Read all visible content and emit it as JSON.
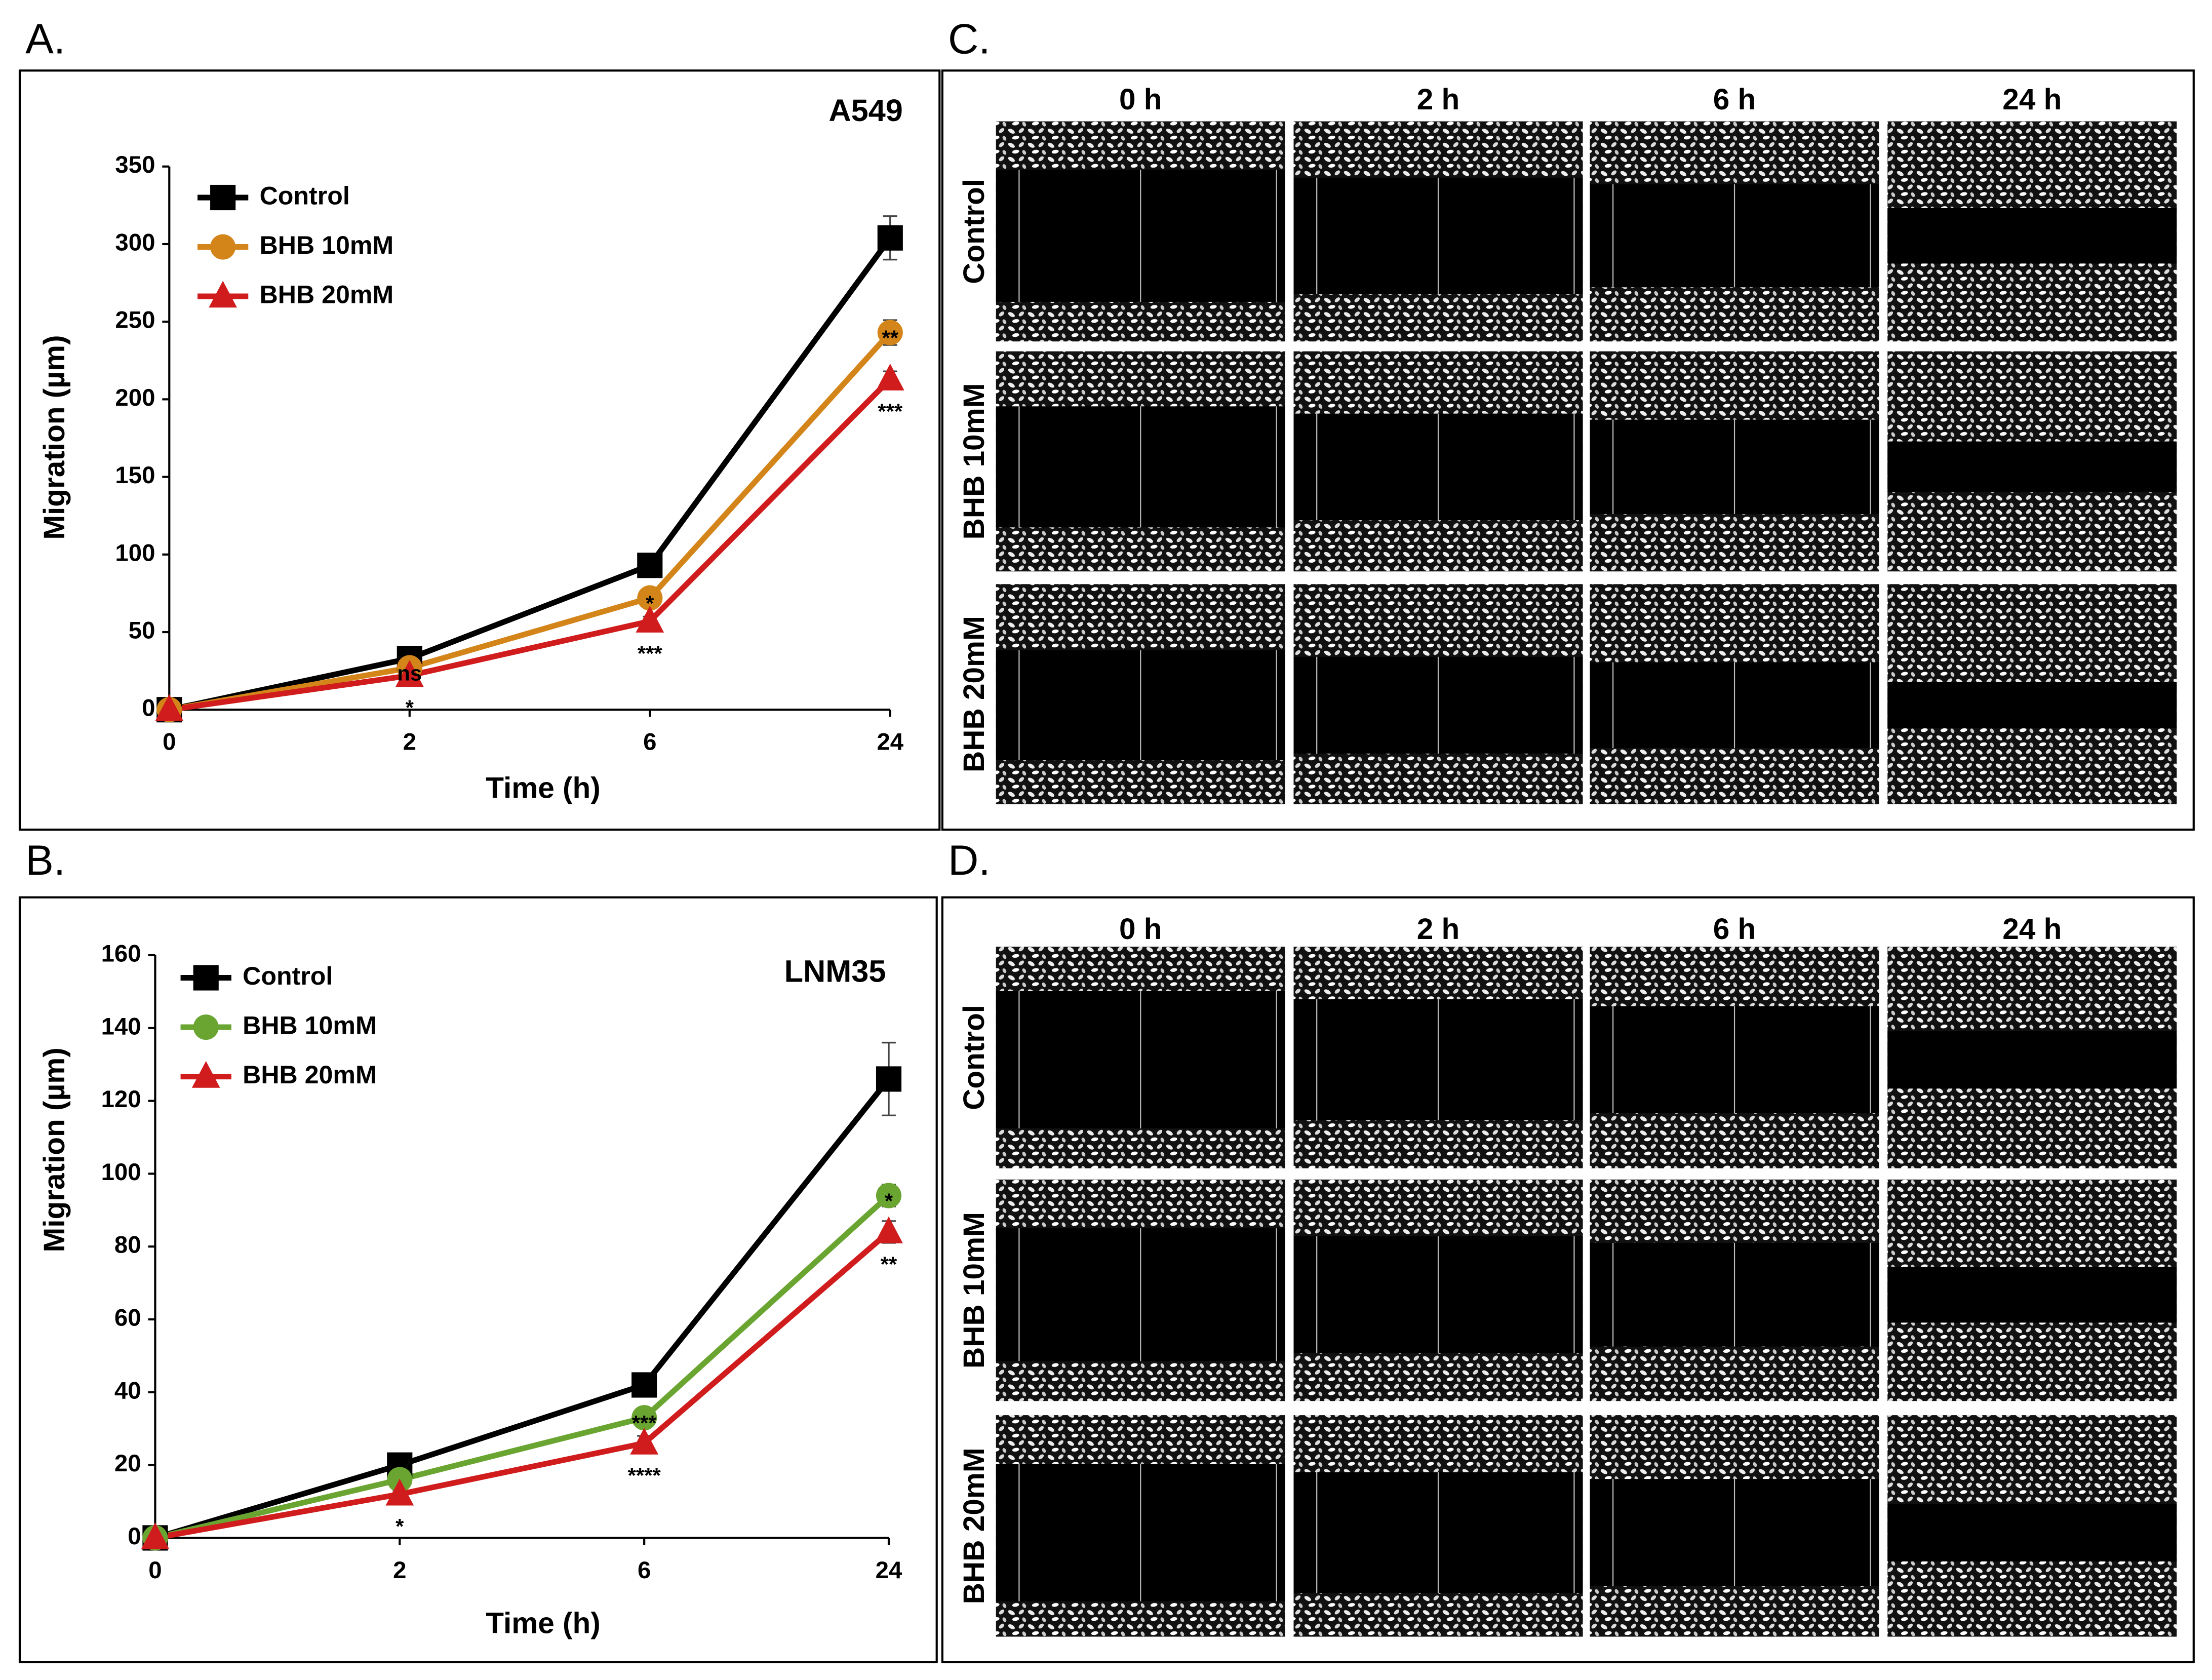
{
  "panels": [
    "A.",
    "B.",
    "C.",
    "D."
  ],
  "chart_data": [
    {
      "type": "line",
      "title": "A549",
      "xlabel": "Time (h)",
      "ylabel": "Migration (µm)",
      "categories": [
        "0",
        "2",
        "6",
        "24"
      ],
      "ylim": [
        0,
        350
      ],
      "yticks": [
        0,
        50,
        100,
        150,
        200,
        250,
        300,
        350
      ],
      "series": [
        {
          "name": "Control",
          "color": "#000000",
          "marker": "square",
          "values": [
            0,
            33,
            93,
            304
          ],
          "errors": [
            0,
            2,
            4,
            14
          ],
          "significance": [
            null,
            null,
            null,
            null
          ]
        },
        {
          "name": "BHB 10mM",
          "color": "#d4851a",
          "marker": "circle",
          "values": [
            0,
            27,
            72,
            243
          ],
          "errors": [
            0,
            2,
            3,
            8
          ],
          "significance": [
            null,
            "ns",
            "*",
            "**"
          ]
        },
        {
          "name": "BHB 20mM",
          "color": "#d01c1c",
          "marker": "triangle",
          "values": [
            0,
            22,
            57,
            213
          ],
          "errors": [
            0,
            2,
            3,
            5
          ],
          "significance": [
            null,
            "*",
            "***",
            "***"
          ]
        }
      ]
    },
    {
      "type": "line",
      "title": "LNM35",
      "xlabel": "Time (h)",
      "ylabel": "Migration (µm)",
      "categories": [
        "0",
        "2",
        "6",
        "24"
      ],
      "ylim": [
        0,
        160
      ],
      "yticks": [
        0,
        20,
        40,
        60,
        80,
        100,
        120,
        140,
        160
      ],
      "series": [
        {
          "name": "Control",
          "color": "#000000",
          "marker": "square",
          "values": [
            0,
            20,
            42,
            126
          ],
          "errors": [
            0,
            1,
            2,
            10
          ],
          "significance": [
            null,
            null,
            null,
            null
          ]
        },
        {
          "name": "BHB 10mM",
          "color": "#6aa532",
          "marker": "circle",
          "values": [
            0,
            16,
            33,
            94
          ],
          "errors": [
            0,
            1,
            2,
            3
          ],
          "significance": [
            null,
            null,
            "***",
            "*"
          ]
        },
        {
          "name": "BHB 20mM",
          "color": "#d01c1c",
          "marker": "triangle",
          "values": [
            0,
            12,
            26,
            84
          ],
          "errors": [
            0,
            1,
            2,
            3
          ],
          "significance": [
            null,
            "*",
            "****",
            "**"
          ]
        }
      ]
    }
  ],
  "micrographs": [
    {
      "columns": [
        "0 h",
        "2 h",
        "6 h",
        "24 h"
      ],
      "rows": [
        "Control",
        "BHB 10mM",
        "BHB 20mM"
      ]
    },
    {
      "columns": [
        "0 h",
        "2 h",
        "6 h",
        "24 h"
      ],
      "rows": [
        "Control",
        "BHB 10mM",
        "BHB 20mM"
      ]
    }
  ]
}
